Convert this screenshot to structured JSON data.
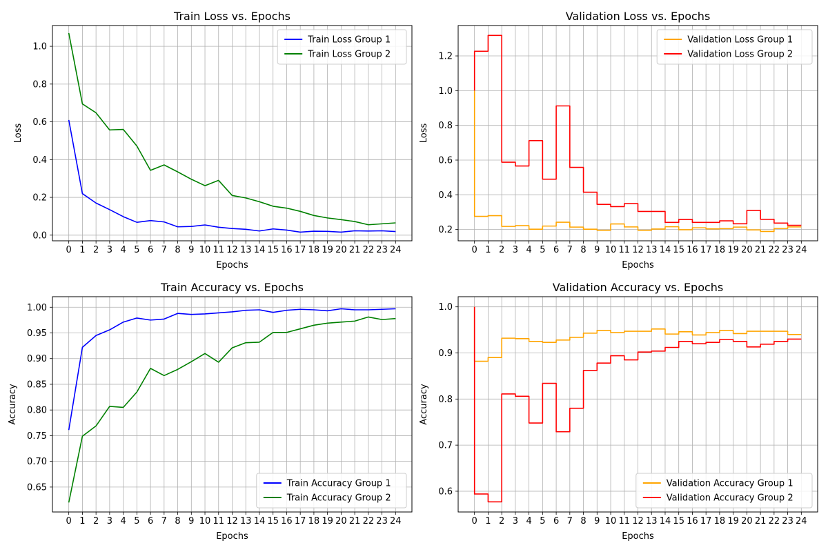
{
  "chart_data": [
    {
      "type": "line",
      "title": "Train Loss vs. Epochs",
      "xlabel": "Epochs",
      "ylabel": "Loss",
      "x": [
        0,
        1,
        2,
        3,
        4,
        5,
        6,
        7,
        8,
        9,
        10,
        11,
        12,
        13,
        14,
        15,
        16,
        17,
        18,
        19,
        20,
        21,
        22,
        23,
        24
      ],
      "xlim": [
        -1.2,
        25.2
      ],
      "ylim": [
        -0.03,
        1.11
      ],
      "yticks": [
        0.0,
        0.2,
        0.4,
        0.6,
        0.8,
        1.0
      ],
      "ytick_decimals": 1,
      "grid": true,
      "legend_loc": "upper right",
      "step": false,
      "series": [
        {
          "name": "Train Loss Group 1",
          "color": "#0000ff",
          "values": [
            0.61,
            0.22,
            0.17,
            0.135,
            0.098,
            0.068,
            0.077,
            0.07,
            0.044,
            0.046,
            0.054,
            0.042,
            0.035,
            0.031,
            0.022,
            0.033,
            0.027,
            0.016,
            0.021,
            0.02,
            0.016,
            0.023,
            0.022,
            0.023,
            0.019
          ]
        },
        {
          "name": "Train Loss Group 2",
          "color": "#008000",
          "values": [
            1.07,
            0.695,
            0.648,
            0.557,
            0.56,
            0.472,
            0.343,
            0.372,
            0.335,
            0.296,
            0.262,
            0.29,
            0.21,
            0.197,
            0.177,
            0.153,
            0.143,
            0.126,
            0.104,
            0.091,
            0.082,
            0.072,
            0.055,
            0.06,
            0.065
          ]
        }
      ]
    },
    {
      "type": "line",
      "title": "Validation Loss vs. Epochs",
      "xlabel": "Epochs",
      "ylabel": "Loss",
      "x": [
        0,
        1,
        2,
        3,
        4,
        5,
        6,
        7,
        8,
        9,
        10,
        11,
        12,
        13,
        14,
        15,
        16,
        17,
        18,
        19,
        20,
        21,
        22,
        23,
        24
      ],
      "xlim": [
        -1.2,
        25.2
      ],
      "ylim": [
        0.135,
        1.375
      ],
      "yticks": [
        0.2,
        0.4,
        0.6,
        0.8,
        1.0,
        1.2
      ],
      "ytick_decimals": 1,
      "grid": true,
      "legend_loc": "upper right",
      "step": true,
      "series": [
        {
          "name": "Validation Loss Group 1",
          "color": "#ffa500",
          "values": [
            1.0,
            0.276,
            0.28,
            0.218,
            0.222,
            0.202,
            0.22,
            0.242,
            0.214,
            0.202,
            0.196,
            0.232,
            0.215,
            0.196,
            0.203,
            0.216,
            0.199,
            0.21,
            0.204,
            0.205,
            0.214,
            0.198,
            0.189,
            0.206,
            0.215
          ]
        },
        {
          "name": "Validation Loss Group 2",
          "color": "#ff0000",
          "values": [
            1.0,
            1.227,
            1.318,
            0.588,
            0.566,
            0.712,
            0.49,
            0.912,
            0.558,
            0.415,
            0.345,
            0.332,
            0.349,
            0.304,
            0.304,
            0.241,
            0.258,
            0.241,
            0.241,
            0.25,
            0.233,
            0.31,
            0.259,
            0.237,
            0.224
          ]
        }
      ]
    },
    {
      "type": "line",
      "title": "Train Accuracy vs. Epochs",
      "xlabel": "Epochs",
      "ylabel": "Accuracy",
      "x": [
        0,
        1,
        2,
        3,
        4,
        5,
        6,
        7,
        8,
        9,
        10,
        11,
        12,
        13,
        14,
        15,
        16,
        17,
        18,
        19,
        20,
        21,
        22,
        23,
        24
      ],
      "xlim": [
        -1.2,
        25.2
      ],
      "ylim": [
        0.6015,
        1.0205
      ],
      "yticks": [
        0.65,
        0.7,
        0.75,
        0.8,
        0.85,
        0.9,
        0.95,
        1.0
      ],
      "ytick_decimals": 2,
      "grid": true,
      "legend_loc": "lower right",
      "step": false,
      "series": [
        {
          "name": "Train Accuracy Group 1",
          "color": "#0000ff",
          "values": [
            0.761,
            0.922,
            0.945,
            0.956,
            0.971,
            0.979,
            0.975,
            0.977,
            0.988,
            0.986,
            0.987,
            0.989,
            0.991,
            0.994,
            0.995,
            0.99,
            0.994,
            0.996,
            0.995,
            0.993,
            0.997,
            0.995,
            0.995,
            0.996,
            0.997
          ]
        },
        {
          "name": "Train Accuracy Group 2",
          "color": "#008000",
          "values": [
            0.62,
            0.749,
            0.769,
            0.807,
            0.805,
            0.835,
            0.881,
            0.867,
            0.879,
            0.894,
            0.91,
            0.893,
            0.921,
            0.931,
            0.932,
            0.951,
            0.951,
            0.958,
            0.965,
            0.969,
            0.971,
            0.973,
            0.981,
            0.976,
            0.978
          ]
        }
      ]
    },
    {
      "type": "line",
      "title": "Validation Accuracy vs. Epochs",
      "xlabel": "Epochs",
      "ylabel": "Accuracy",
      "x": [
        0,
        1,
        2,
        3,
        4,
        5,
        6,
        7,
        8,
        9,
        10,
        11,
        12,
        13,
        14,
        15,
        16,
        17,
        18,
        19,
        20,
        21,
        22,
        23,
        24
      ],
      "xlim": [
        -1.2,
        25.2
      ],
      "ylim": [
        0.555,
        1.022
      ],
      "yticks": [
        0.6,
        0.7,
        0.8,
        0.9,
        1.0
      ],
      "ytick_decimals": 1,
      "grid": true,
      "legend_loc": "lower right",
      "step": true,
      "series": [
        {
          "name": "Validation Accuracy Group 1",
          "color": "#ffa500",
          "values": [
            1.0,
            0.882,
            0.89,
            0.932,
            0.931,
            0.925,
            0.923,
            0.928,
            0.934,
            0.943,
            0.949,
            0.944,
            0.947,
            0.947,
            0.952,
            0.941,
            0.946,
            0.939,
            0.944,
            0.949,
            0.942,
            0.947,
            0.947,
            0.947,
            0.94
          ]
        },
        {
          "name": "Validation Accuracy Group 2",
          "color": "#ff0000",
          "values": [
            1.0,
            0.594,
            0.577,
            0.811,
            0.806,
            0.748,
            0.834,
            0.729,
            0.78,
            0.862,
            0.878,
            0.894,
            0.885,
            0.902,
            0.904,
            0.912,
            0.925,
            0.92,
            0.923,
            0.929,
            0.925,
            0.913,
            0.919,
            0.925,
            0.93
          ]
        }
      ]
    }
  ]
}
